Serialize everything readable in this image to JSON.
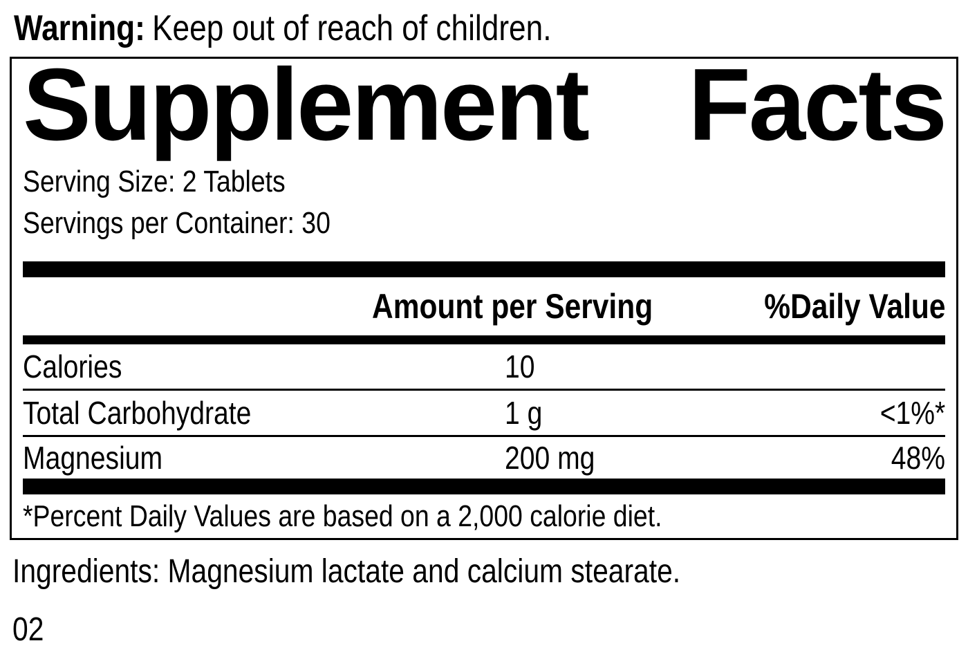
{
  "colors": {
    "ink": "#000000",
    "background": "#ffffff"
  },
  "warning": {
    "label": "Warning:",
    "text": "Keep out of reach of children."
  },
  "panel": {
    "title": {
      "left": "Supplement",
      "right": "Facts"
    },
    "serving_size": "Serving Size: 2 Tablets",
    "servings_per_container": "Servings per Container: 30",
    "columns": {
      "amount": "Amount per Serving",
      "dv": "%Daily Value"
    },
    "rows": [
      {
        "name": "Calories",
        "amount": "10",
        "dv": ""
      },
      {
        "name": "Total Carbohydrate",
        "amount": "1 g",
        "dv": "<1%*"
      },
      {
        "name": "Magnesium",
        "amount": "200 mg",
        "dv": "48%"
      }
    ],
    "footnote": "*Percent Daily Values are based on a 2,000 calorie diet."
  },
  "ingredients": "Ingredients: Magnesium lactate and calcium stearate.",
  "code": "02"
}
